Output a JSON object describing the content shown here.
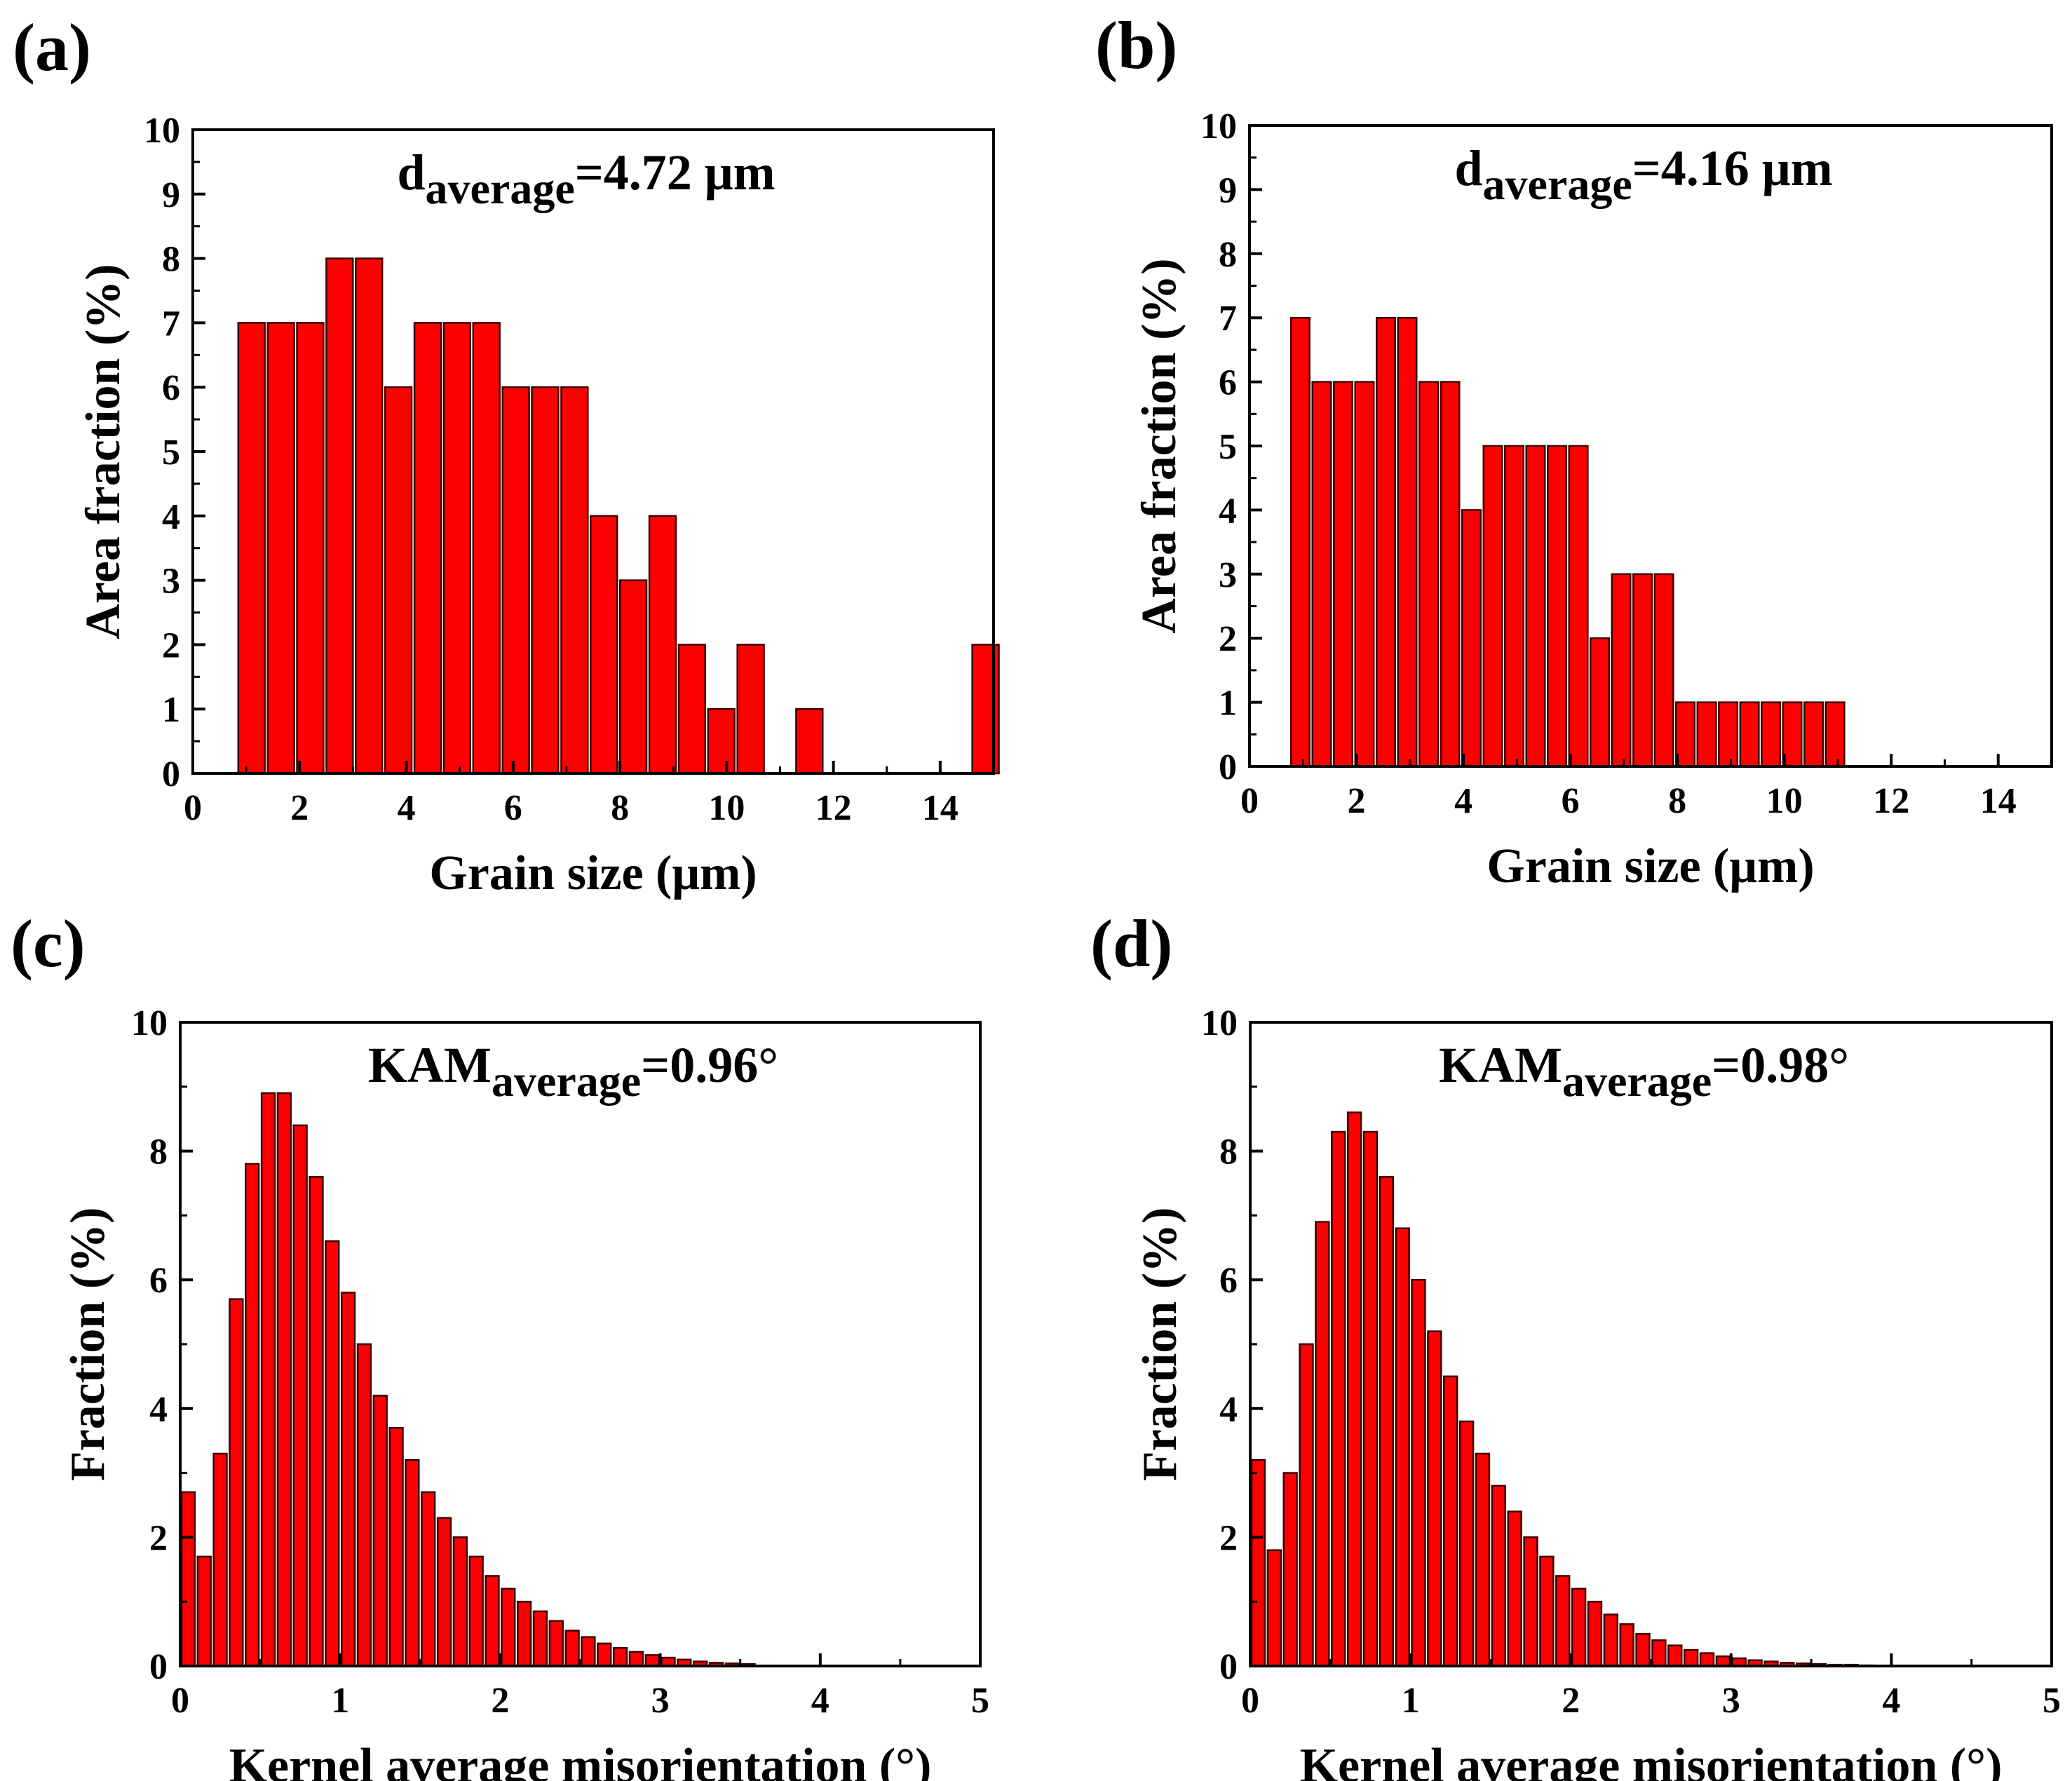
{
  "colors": {
    "bar_fill": "#ff0000",
    "bar_stroke": "#3a0000",
    "axis": "#000000"
  },
  "chart_data": [
    {
      "id": "a",
      "type": "bar",
      "panel_label": "(a)",
      "annotation": {
        "main": "d",
        "sub": "average",
        "rest": "=4.72 μm"
      },
      "xlabel": "Grain size (μm)",
      "ylabel": "Area fraction (%)",
      "xlim": [
        0,
        15
      ],
      "ylim": [
        0,
        10
      ],
      "xticks": [
        "0",
        "2",
        "4",
        "6",
        "8",
        "10",
        "12",
        "14"
      ],
      "xtick_values": [
        0,
        2,
        4,
        6,
        8,
        10,
        12,
        14
      ],
      "yticks": [
        "0",
        "1",
        "2",
        "3",
        "4",
        "5",
        "6",
        "7",
        "8",
        "9",
        "10"
      ],
      "ytick_values": [
        0,
        1,
        2,
        3,
        4,
        5,
        6,
        7,
        8,
        9,
        10
      ],
      "bin_width": 0.55,
      "x": [
        1.1,
        1.65,
        2.2,
        2.75,
        3.3,
        3.85,
        4.4,
        4.95,
        5.5,
        6.05,
        6.6,
        7.15,
        7.7,
        8.25,
        8.8,
        9.35,
        9.9,
        10.45,
        11,
        11.55,
        12.1,
        12.65,
        13.2,
        13.75,
        14.3,
        14.85
      ],
      "values": [
        7,
        7,
        7,
        8,
        8,
        6,
        7,
        7,
        7,
        6,
        6,
        6,
        4,
        3,
        4,
        2,
        1,
        2,
        0,
        1,
        0,
        0,
        0,
        0,
        0,
        2
      ]
    },
    {
      "id": "b",
      "type": "bar",
      "panel_label": "(b)",
      "annotation": {
        "main": "d",
        "sub": "average",
        "rest": "=4.16 μm"
      },
      "xlabel": "Grain size (μm)",
      "ylabel": "Area fraction (%)",
      "xlim": [
        0,
        15
      ],
      "ylim": [
        0,
        10
      ],
      "xticks": [
        "0",
        "2",
        "4",
        "6",
        "8",
        "10",
        "12",
        "14"
      ],
      "xtick_values": [
        0,
        2,
        4,
        6,
        8,
        10,
        12,
        14
      ],
      "yticks": [
        "0",
        "1",
        "2",
        "3",
        "4",
        "5",
        "6",
        "7",
        "8",
        "9",
        "10"
      ],
      "ytick_values": [
        0,
        1,
        2,
        3,
        4,
        5,
        6,
        7,
        8,
        9,
        10
      ],
      "bin_width": 0.4,
      "x": [
        0.95,
        1.35,
        1.75,
        2.15,
        2.55,
        2.95,
        3.35,
        3.75,
        4.15,
        4.55,
        4.95,
        5.35,
        5.75,
        6.15,
        6.55,
        6.95,
        7.35,
        7.75,
        8.15,
        8.55,
        8.95,
        9.35,
        9.75,
        10.15,
        10.55,
        10.95
      ],
      "values": [
        7,
        6,
        6,
        6,
        7,
        7,
        6,
        6,
        4,
        5,
        5,
        5,
        5,
        5,
        2,
        3,
        3,
        3,
        1,
        1,
        1,
        1,
        1,
        1,
        1,
        1
      ]
    },
    {
      "id": "c",
      "type": "bar",
      "panel_label": "(c)",
      "annotation": {
        "main": "KAM",
        "sub": "average",
        "rest": "=0.96°"
      },
      "xlabel": "Kernel average misorientation (°)",
      "ylabel": "Fraction (%)",
      "xlim": [
        0,
        5
      ],
      "ylim": [
        0,
        10
      ],
      "xticks": [
        "0",
        "1",
        "2",
        "3",
        "4",
        "5"
      ],
      "xtick_values": [
        0,
        1,
        2,
        3,
        4,
        5
      ],
      "yticks": [
        "0",
        "2",
        "4",
        "6",
        "8",
        "10"
      ],
      "ytick_values": [
        0,
        2,
        4,
        6,
        8,
        10
      ],
      "bin_width": 0.1,
      "x": [
        0.05,
        0.15,
        0.25,
        0.35,
        0.45,
        0.55,
        0.65,
        0.75,
        0.85,
        0.95,
        1.05,
        1.15,
        1.25,
        1.35,
        1.45,
        1.55,
        1.65,
        1.75,
        1.85,
        1.95,
        2.05,
        2.15,
        2.25,
        2.35,
        2.45,
        2.55,
        2.65,
        2.75,
        2.85,
        2.95,
        3.05,
        3.15,
        3.25,
        3.35,
        3.45,
        3.55
      ],
      "values": [
        2.7,
        1.7,
        3.3,
        5.7,
        7.8,
        8.9,
        8.9,
        8.4,
        7.6,
        6.6,
        5.8,
        5.0,
        4.2,
        3.7,
        3.2,
        2.7,
        2.3,
        2.0,
        1.7,
        1.4,
        1.2,
        1.0,
        0.85,
        0.7,
        0.55,
        0.45,
        0.35,
        0.28,
        0.22,
        0.17,
        0.13,
        0.1,
        0.07,
        0.05,
        0.04,
        0.03
      ]
    },
    {
      "id": "d",
      "type": "bar",
      "panel_label": "(d)",
      "annotation": {
        "main": "KAM",
        "sub": "average",
        "rest": "=0.98°"
      },
      "xlabel": "Kernel average misorientation (°)",
      "ylabel": "Fraction (%)",
      "xlim": [
        0,
        5
      ],
      "ylim": [
        0,
        10
      ],
      "xticks": [
        "0",
        "1",
        "2",
        "3",
        "4",
        "5"
      ],
      "xtick_values": [
        0,
        1,
        2,
        3,
        4,
        5
      ],
      "yticks": [
        "0",
        "2",
        "4",
        "6",
        "8",
        "10"
      ],
      "ytick_values": [
        0,
        2,
        4,
        6,
        8,
        10
      ],
      "bin_width": 0.1,
      "x": [
        0.05,
        0.15,
        0.25,
        0.35,
        0.45,
        0.55,
        0.65,
        0.75,
        0.85,
        0.95,
        1.05,
        1.15,
        1.25,
        1.35,
        1.45,
        1.55,
        1.65,
        1.75,
        1.85,
        1.95,
        2.05,
        2.15,
        2.25,
        2.35,
        2.45,
        2.55,
        2.65,
        2.75,
        2.85,
        2.95,
        3.05,
        3.15,
        3.25,
        3.35,
        3.45,
        3.55,
        3.65,
        3.75,
        3.85
      ],
      "values": [
        3.2,
        1.8,
        3.0,
        5.0,
        6.9,
        8.3,
        8.6,
        8.3,
        7.6,
        6.8,
        6.0,
        5.2,
        4.5,
        3.8,
        3.3,
        2.8,
        2.4,
        2.0,
        1.7,
        1.4,
        1.2,
        1.0,
        0.8,
        0.65,
        0.5,
        0.4,
        0.32,
        0.25,
        0.2,
        0.15,
        0.12,
        0.09,
        0.07,
        0.05,
        0.04,
        0.03,
        0.02,
        0.02,
        0.01
      ]
    }
  ]
}
